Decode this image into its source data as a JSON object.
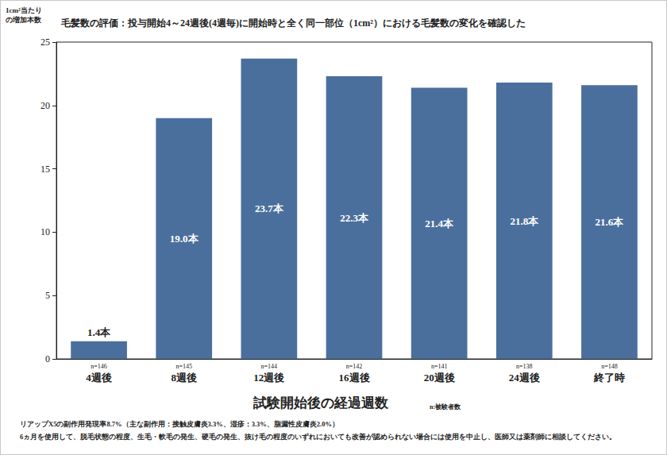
{
  "chart_data": {
    "type": "bar",
    "title": "毛髪数の評価：投与開始4～24週後(4週毎)に開始時と全く同一部位（1cm²）における毛髪数の変化を確認した",
    "y_label": "1cm²当たり\nの増加本数",
    "x_label": "試験開始後の経過週数",
    "x_note": "n:被験者数",
    "categories": [
      "4週後",
      "8週後",
      "12週後",
      "16週後",
      "20週後",
      "24週後",
      "終了時"
    ],
    "n_labels": [
      "n=146",
      "n=145",
      "n=144",
      "n=142",
      "n=141",
      "n=138",
      "n=148"
    ],
    "values": [
      1.4,
      19.0,
      23.7,
      22.3,
      21.4,
      21.8,
      21.6
    ],
    "value_labels": [
      "1.4本",
      "19.0本",
      "23.7本",
      "22.3本",
      "21.4本",
      "21.8本",
      "21.6本"
    ],
    "color": "#4b6f9d",
    "ylim": [
      0,
      25
    ],
    "yticks": [
      0,
      5,
      10,
      15,
      20,
      25
    ],
    "grid": false,
    "data_labels": true,
    "footnotes": [
      "リアップX5の副作用発現率8.7%（主な副作用：接触皮膚炎3.3%、湿疹：3.3%、脂漏性皮膚炎2.0%）",
      "6ヵ月を使用して、脱毛状態の程度、生毛・軟毛の発生、硬毛の発生、抜け毛の程度のいずれにおいても改善が認められない場合には使用を中止し、医師又は薬剤師に相談してください。"
    ]
  }
}
